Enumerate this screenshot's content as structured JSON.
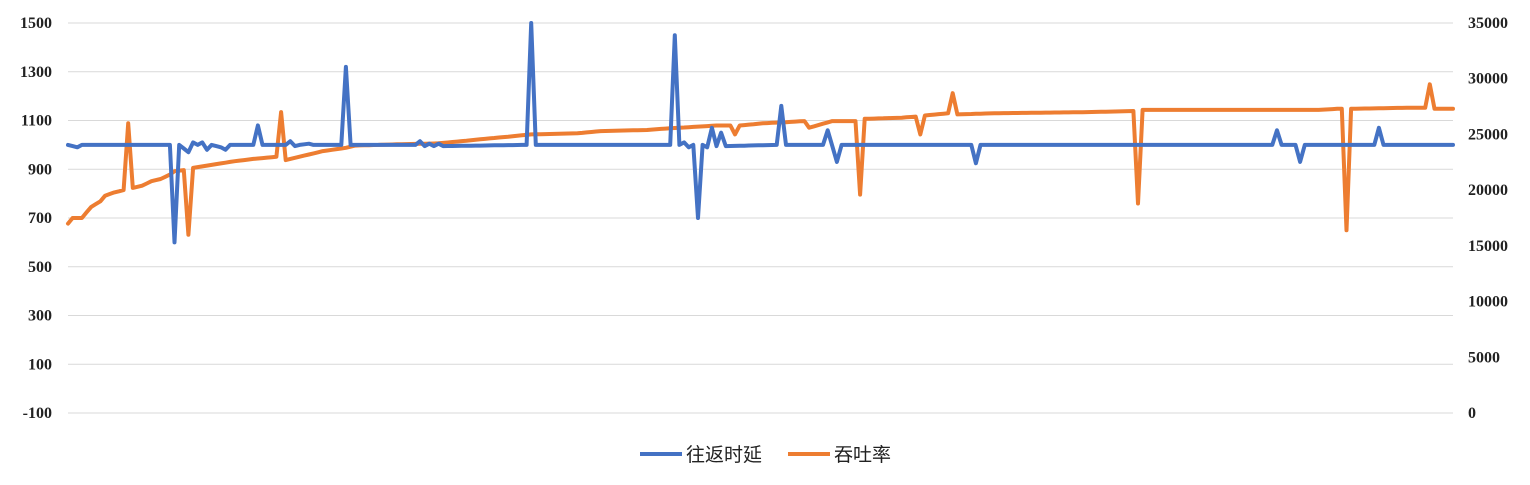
{
  "chart_data": {
    "type": "line",
    "title": "",
    "xlabel": "",
    "ylabel": "",
    "ylim_left": [
      -100,
      1500
    ],
    "ylim_right": [
      0,
      35000
    ],
    "left_ticks": [
      -100,
      100,
      300,
      500,
      700,
      900,
      1100,
      1300,
      1500
    ],
    "right_ticks": [
      0,
      5000,
      10000,
      15000,
      20000,
      25000,
      30000,
      35000
    ],
    "grid": true,
    "legend_position": "bottom",
    "x_count": 300,
    "series": [
      {
        "name": "往返时延",
        "axis": "left",
        "color": "#4472C4",
        "baseline": 1000,
        "points": [
          [
            0,
            1000
          ],
          [
            2,
            990
          ],
          [
            3,
            1000
          ],
          [
            22,
            1000
          ],
          [
            23,
            600
          ],
          [
            24,
            1000
          ],
          [
            26,
            970
          ],
          [
            27,
            1010
          ],
          [
            28,
            1000
          ],
          [
            29,
            1010
          ],
          [
            30,
            980
          ],
          [
            31,
            1000
          ],
          [
            33,
            990
          ],
          [
            34,
            980
          ],
          [
            35,
            1000
          ],
          [
            39,
            1000
          ],
          [
            40,
            1000
          ],
          [
            41,
            1080
          ],
          [
            42,
            1000
          ],
          [
            47,
            1000
          ],
          [
            48,
            1015
          ],
          [
            49,
            995
          ],
          [
            50,
            1000
          ],
          [
            52,
            1005
          ],
          [
            53,
            1000
          ],
          [
            59,
            1000
          ],
          [
            60,
            1320
          ],
          [
            61,
            1000
          ],
          [
            75,
            1000
          ],
          [
            76,
            1015
          ],
          [
            77,
            995
          ],
          [
            78,
            1005
          ],
          [
            79,
            995
          ],
          [
            80,
            1005
          ],
          [
            81,
            995
          ],
          [
            99,
            1000
          ],
          [
            100,
            1500
          ],
          [
            101,
            1000
          ],
          [
            130,
            1000
          ],
          [
            131,
            1450
          ],
          [
            132,
            1000
          ],
          [
            133,
            1010
          ],
          [
            134,
            990
          ],
          [
            135,
            1000
          ],
          [
            136,
            700
          ],
          [
            137,
            1000
          ],
          [
            138,
            990
          ],
          [
            139,
            1070
          ],
          [
            140,
            995
          ],
          [
            141,
            1050
          ],
          [
            142,
            995
          ],
          [
            153,
            1000
          ],
          [
            154,
            1160
          ],
          [
            155,
            1000
          ],
          [
            163,
            1000
          ],
          [
            164,
            1060
          ],
          [
            165,
            995
          ],
          [
            166,
            930
          ],
          [
            167,
            1000
          ],
          [
            195,
            1000
          ],
          [
            196,
            925
          ],
          [
            197,
            1000
          ],
          [
            260,
            1000
          ],
          [
            261,
            1060
          ],
          [
            262,
            1000
          ],
          [
            265,
            1000
          ],
          [
            266,
            930
          ],
          [
            267,
            1000
          ],
          [
            282,
            1000
          ],
          [
            283,
            1070
          ],
          [
            284,
            1000
          ],
          [
            299,
            1000
          ]
        ]
      },
      {
        "name": "吞吐率",
        "axis": "right",
        "color": "#ED7D31",
        "points": [
          [
            0,
            17000
          ],
          [
            1,
            17500
          ],
          [
            3,
            17500
          ],
          [
            5,
            18500
          ],
          [
            7,
            19000
          ],
          [
            8,
            19500
          ],
          [
            10,
            19800
          ],
          [
            12,
            20000
          ],
          [
            13,
            26000
          ],
          [
            14,
            20200
          ],
          [
            16,
            20400
          ],
          [
            18,
            20800
          ],
          [
            20,
            21000
          ],
          [
            22,
            21400
          ],
          [
            23,
            21700
          ],
          [
            25,
            21800
          ],
          [
            26,
            16000
          ],
          [
            27,
            22000
          ],
          [
            30,
            22200
          ],
          [
            33,
            22400
          ],
          [
            36,
            22600
          ],
          [
            40,
            22800
          ],
          [
            45,
            23000
          ],
          [
            46,
            27000
          ],
          [
            47,
            22700
          ],
          [
            50,
            23000
          ],
          [
            55,
            23500
          ],
          [
            60,
            23800
          ],
          [
            62,
            24000
          ],
          [
            70,
            24100
          ],
          [
            80,
            24200
          ],
          [
            85,
            24400
          ],
          [
            90,
            24600
          ],
          [
            95,
            24800
          ],
          [
            100,
            25000
          ],
          [
            110,
            25100
          ],
          [
            115,
            25300
          ],
          [
            125,
            25400
          ],
          [
            128,
            25500
          ],
          [
            136,
            25700
          ],
          [
            140,
            25800
          ],
          [
            143,
            25800
          ],
          [
            144,
            25000
          ],
          [
            145,
            25800
          ],
          [
            150,
            26000
          ],
          [
            155,
            26100
          ],
          [
            159,
            26200
          ],
          [
            160,
            25600
          ],
          [
            165,
            26200
          ],
          [
            170,
            26200
          ],
          [
            171,
            19600
          ],
          [
            172,
            26400
          ],
          [
            180,
            26500
          ],
          [
            183,
            26600
          ],
          [
            184,
            25000
          ],
          [
            185,
            26700
          ],
          [
            190,
            26900
          ],
          [
            191,
            28700
          ],
          [
            192,
            26800
          ],
          [
            200,
            26900
          ],
          [
            220,
            27000
          ],
          [
            230,
            27100
          ],
          [
            231,
            18800
          ],
          [
            232,
            27200
          ],
          [
            250,
            27200
          ],
          [
            270,
            27200
          ],
          [
            274,
            27300
          ],
          [
            275,
            27300
          ],
          [
            276,
            16400
          ],
          [
            277,
            27300
          ],
          [
            290,
            27400
          ],
          [
            293,
            27400
          ],
          [
            294,
            29500
          ],
          [
            295,
            27300
          ],
          [
            299,
            27300
          ]
        ]
      }
    ]
  }
}
